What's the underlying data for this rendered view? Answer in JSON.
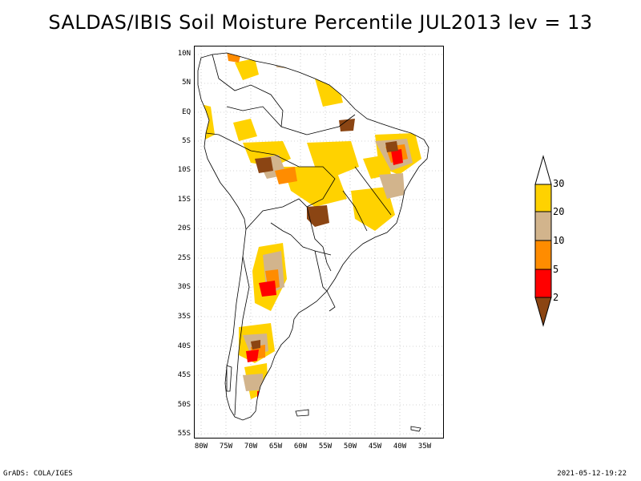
{
  "title": "SALDAS/IBIS Soil Moisture Percentile JUL2013 lev = 13",
  "map": {
    "lat_labels": [
      "10N",
      "5N",
      "EQ",
      "5S",
      "10S",
      "15S",
      "20S",
      "25S",
      "30S",
      "35S",
      "40S",
      "45S",
      "50S",
      "55S"
    ],
    "lon_labels": [
      "80W",
      "75W",
      "70W",
      "65W",
      "60W",
      "55W",
      "50W",
      "45W",
      "40W",
      "35W"
    ],
    "lon_range": [
      -80.5,
      -30.5
    ],
    "lat_range": [
      11.5,
      -56
    ]
  },
  "legend": {
    "levels": [
      "30",
      "20",
      "10",
      "5",
      "2"
    ],
    "colors": {
      "above30": "#ffffff",
      "c20_30": "#ffd200",
      "c10_20": "#d2b48c",
      "c5_10": "#ff8c00",
      "c2_5": "#ff0000",
      "below2": "#8b4513"
    }
  },
  "footer": {
    "left": "GrADS: COLA/IGES",
    "right": "2021-05-12-19:22"
  }
}
